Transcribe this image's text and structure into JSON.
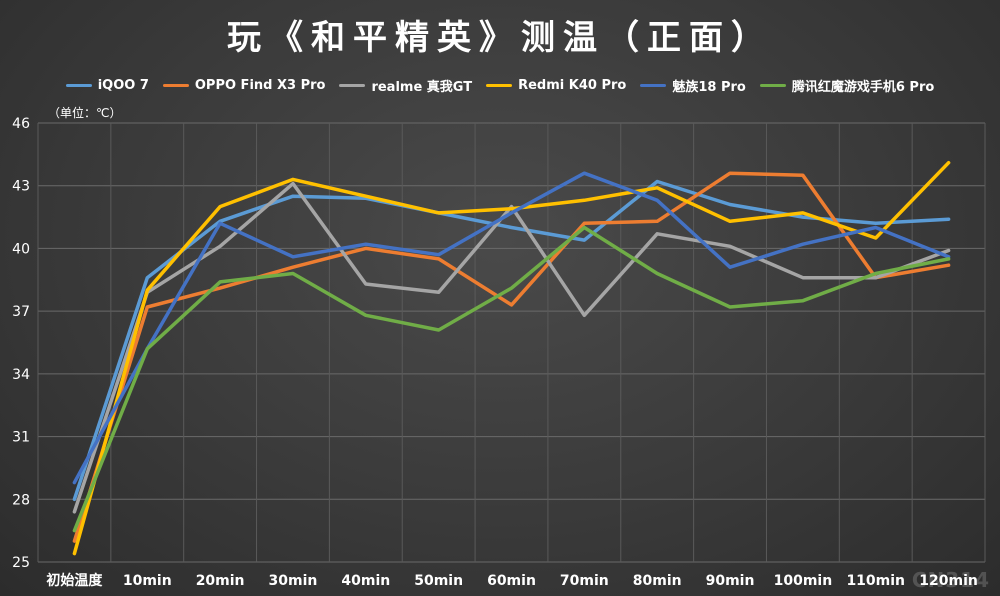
{
  "chart_data": {
    "type": "line",
    "title": "玩《和平精英》测温（正面）",
    "unit_label": "（单位：℃）",
    "ylim": [
      25,
      46
    ],
    "yticks": [
      25,
      28,
      31,
      34,
      37,
      40,
      43,
      46
    ],
    "grid": true,
    "legend_position": "top",
    "categories": [
      "初始温度",
      "10min",
      "20min",
      "30min",
      "40min",
      "50min",
      "60min",
      "70min",
      "80min",
      "90min",
      "100min",
      "110min",
      "120min"
    ],
    "series": [
      {
        "name": "iQOO 7",
        "color": "#5b9bd5",
        "values": [
          28.0,
          38.6,
          41.3,
          42.5,
          42.4,
          41.7,
          41.0,
          40.4,
          43.2,
          42.1,
          41.5,
          41.2,
          41.4
        ]
      },
      {
        "name": "OPPO Find X3 Pro",
        "color": "#ed7d31",
        "values": [
          26.0,
          37.2,
          38.1,
          39.1,
          40.0,
          39.5,
          37.3,
          41.2,
          41.3,
          43.6,
          43.5,
          38.6,
          39.2
        ]
      },
      {
        "name": "realme 真我GT",
        "color": "#a5a5a5",
        "values": [
          27.4,
          37.9,
          40.1,
          43.1,
          38.3,
          37.9,
          42.0,
          36.8,
          40.7,
          40.1,
          38.6,
          38.6,
          39.9
        ]
      },
      {
        "name": "Redmi K40 Pro",
        "color": "#ffc000",
        "values": [
          25.4,
          38.0,
          42.0,
          43.3,
          42.5,
          41.7,
          41.9,
          42.3,
          42.9,
          41.3,
          41.7,
          40.5,
          44.1
        ]
      },
      {
        "name": "魅族18 Pro",
        "color": "#4472c4",
        "values": [
          28.8,
          35.2,
          41.2,
          39.6,
          40.2,
          39.7,
          41.7,
          43.6,
          42.3,
          39.1,
          40.2,
          41.0,
          39.6
        ]
      },
      {
        "name": "腾讯红魔游戏手机6 Pro",
        "color": "#70ad47",
        "values": [
          26.5,
          35.2,
          38.4,
          38.8,
          36.8,
          36.1,
          38.1,
          41.0,
          38.8,
          37.2,
          37.5,
          38.8,
          39.5
        ]
      }
    ]
  },
  "watermark": "CN314"
}
